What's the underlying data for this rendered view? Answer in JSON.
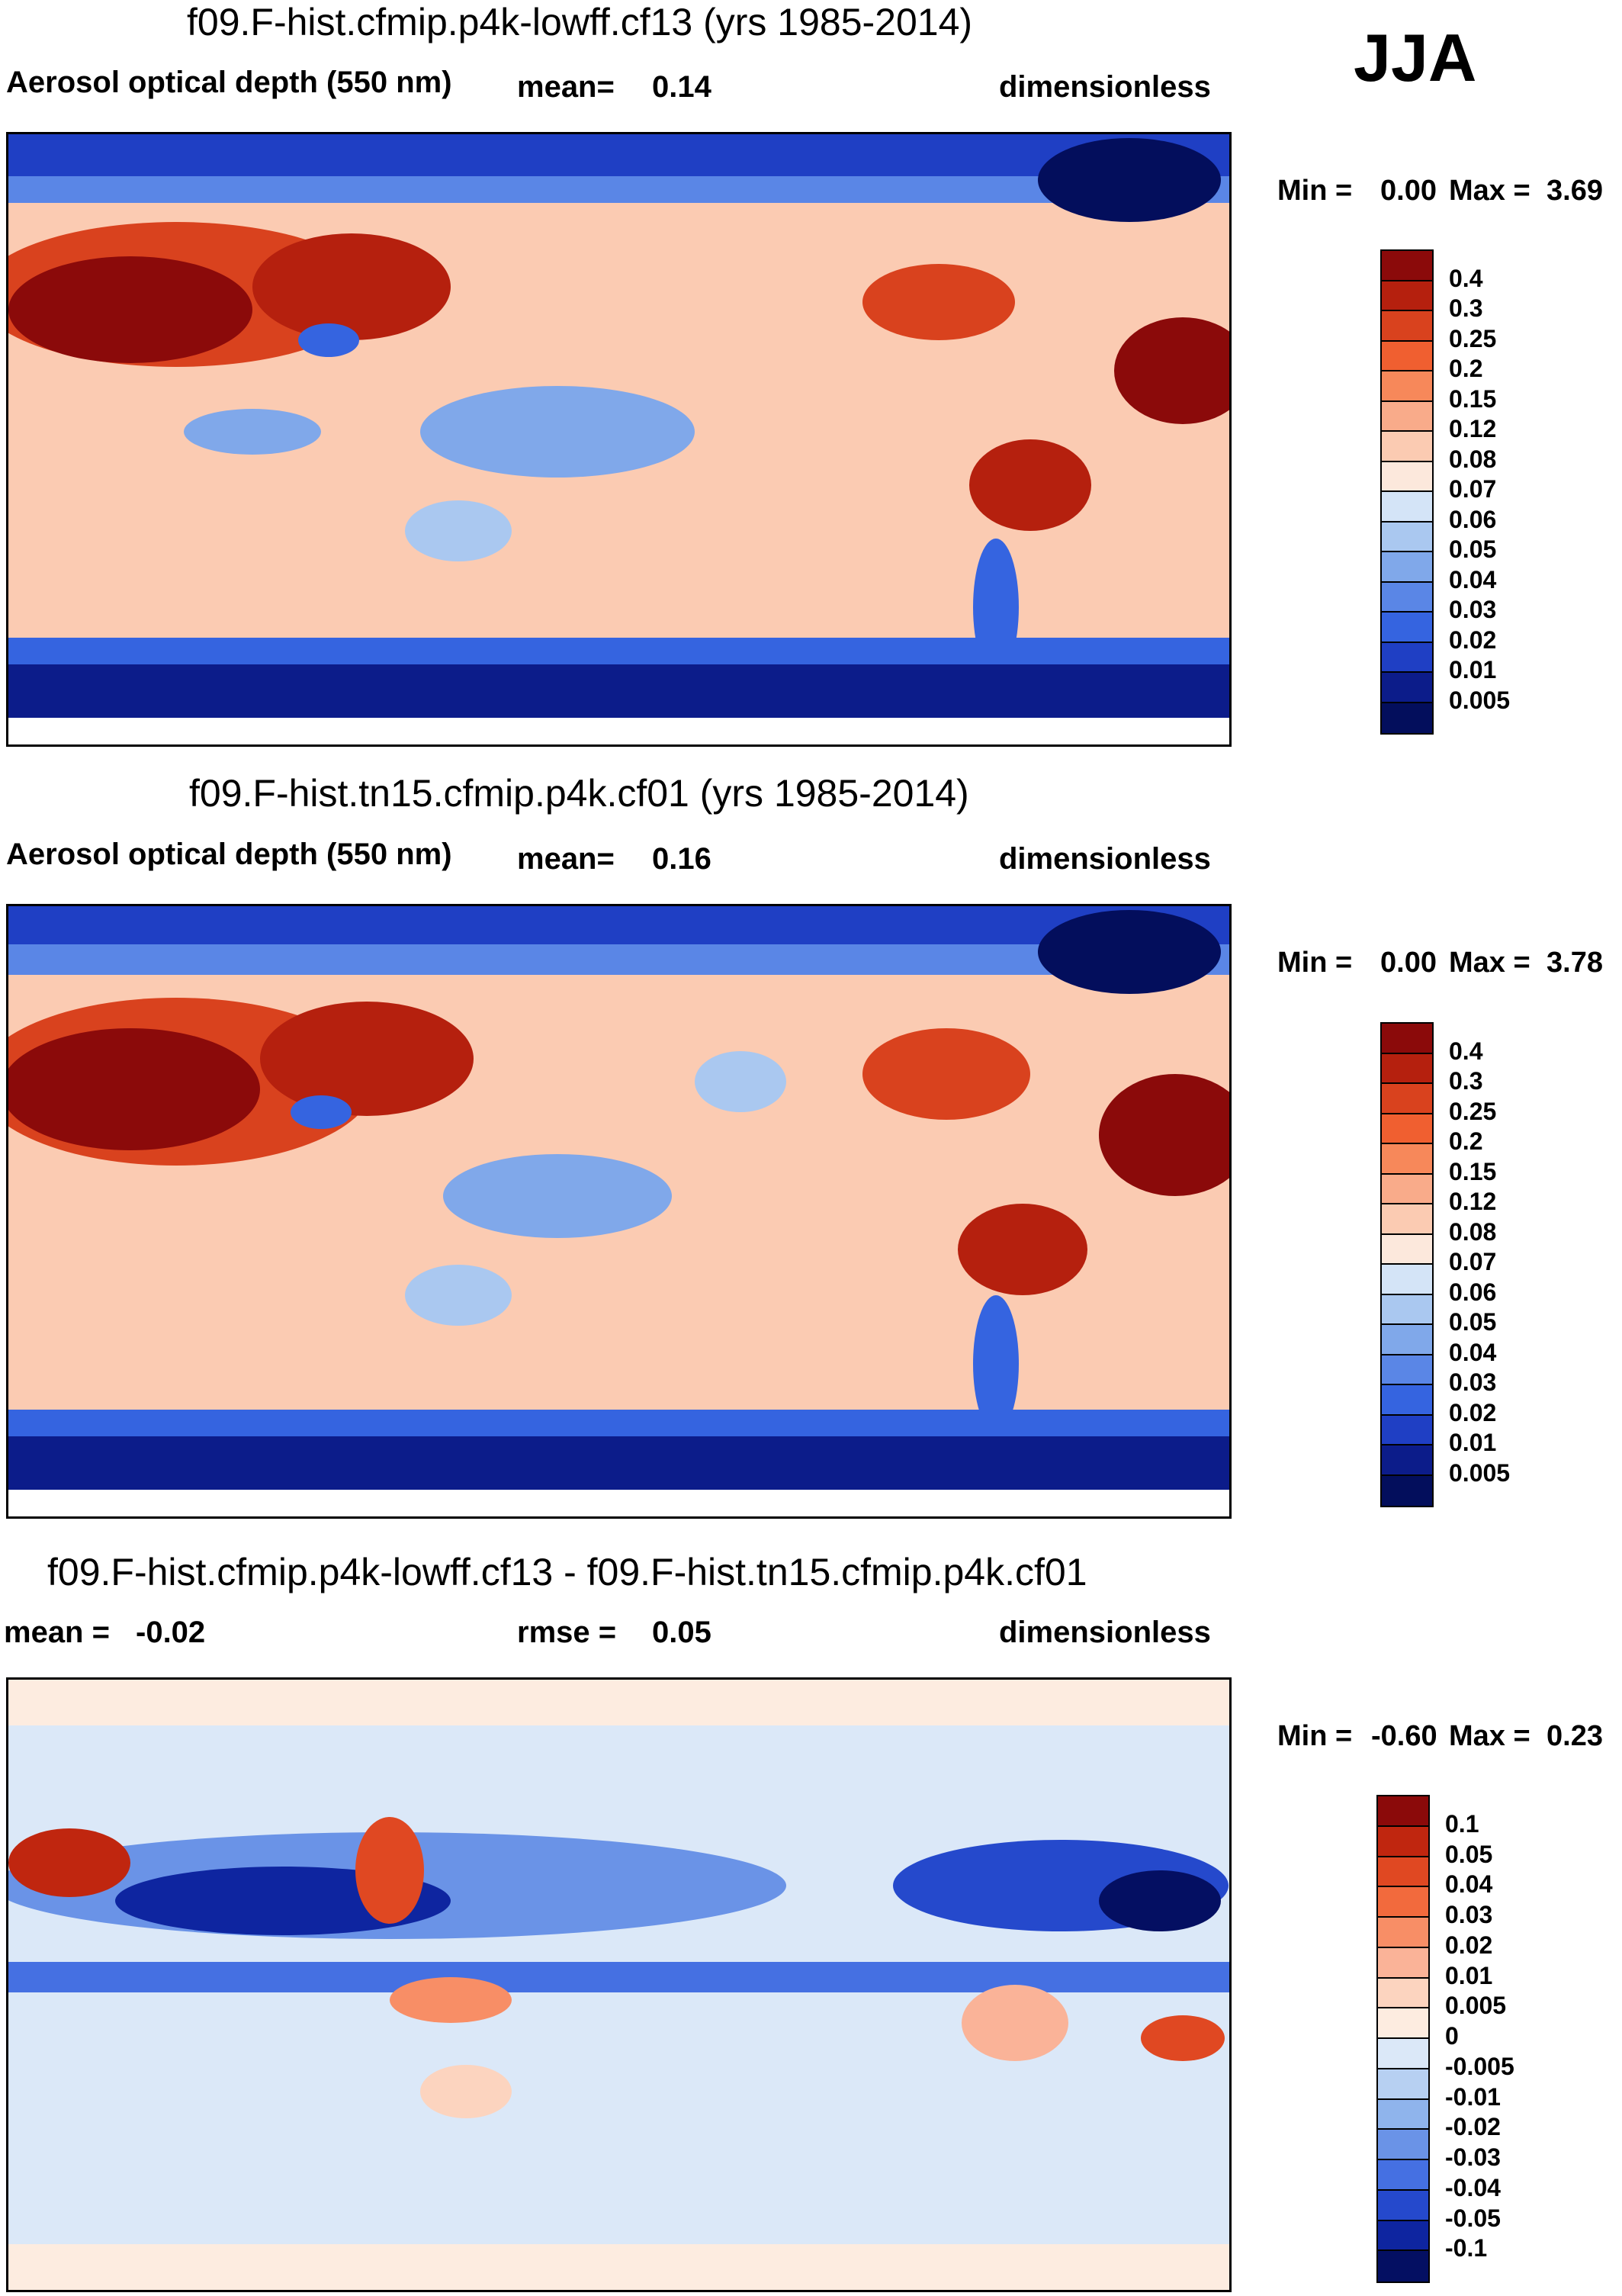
{
  "season": "JJA",
  "panels": [
    {
      "title": "f09.F-hist.cfmip.p4k-lowff.cf13 (yrs 1985-2014)",
      "variable": "Aerosol optical depth (550 nm)",
      "stat_label": "mean=",
      "stat_value": "0.14",
      "units": "dimensionless",
      "min_label": "Min =",
      "min_value": "0.00",
      "max_label": "Max =",
      "max_value": "3.69",
      "colorbar_labels": [
        "0.4",
        "0.3",
        "0.25",
        "0.2",
        "0.15",
        "0.12",
        "0.08",
        "0.07",
        "0.06",
        "0.05",
        "0.04",
        "0.03",
        "0.02",
        "0.01",
        "0.005"
      ]
    },
    {
      "title": "f09.F-hist.tn15.cfmip.p4k.cf01 (yrs 1985-2014)",
      "variable": "Aerosol optical depth (550 nm)",
      "stat_label": "mean=",
      "stat_value": "0.16",
      "units": "dimensionless",
      "min_label": "Min =",
      "min_value": "0.00",
      "max_label": "Max =",
      "max_value": "3.78",
      "colorbar_labels": [
        "0.4",
        "0.3",
        "0.25",
        "0.2",
        "0.15",
        "0.12",
        "0.08",
        "0.07",
        "0.06",
        "0.05",
        "0.04",
        "0.03",
        "0.02",
        "0.01",
        "0.005"
      ]
    },
    {
      "title": "f09.F-hist.cfmip.p4k-lowff.cf13 - f09.F-hist.tn15.cfmip.p4k.cf01",
      "mean_label": "mean =",
      "mean_value": "-0.02",
      "rmse_label": "rmse =",
      "rmse_value": "0.05",
      "units": "dimensionless",
      "min_label": "Min =",
      "min_value": "-0.60",
      "max_label": "Max =",
      "max_value": "0.23",
      "colorbar_labels": [
        "0.1",
        "0.05",
        "0.04",
        "0.03",
        "0.02",
        "0.01",
        "0.005",
        "0",
        "-0.005",
        "-0.01",
        "-0.02",
        "-0.03",
        "-0.04",
        "-0.05",
        "-0.1"
      ]
    }
  ],
  "palette_abs": [
    "#8b0a0a",
    "#b5200e",
    "#d9421e",
    "#f05f30",
    "#f7885a",
    "#f9ab8a",
    "#fbcbb2",
    "#fce8dc",
    "#d4e4f7",
    "#aac8f0",
    "#80a8ea",
    "#5a86e6",
    "#3564e0",
    "#1f3fc4",
    "#0c1c8a",
    "#030e5c"
  ],
  "palette_diff": [
    "#8b0a0a",
    "#c0260f",
    "#e04822",
    "#f26a3d",
    "#f88e66",
    "#fab398",
    "#fcd4bf",
    "#fdece0",
    "#dbe8f8",
    "#b7d0f2",
    "#8fb4ec",
    "#6a93e7",
    "#4570e2",
    "#2549cc",
    "#0e25a0",
    "#040f62"
  ]
}
